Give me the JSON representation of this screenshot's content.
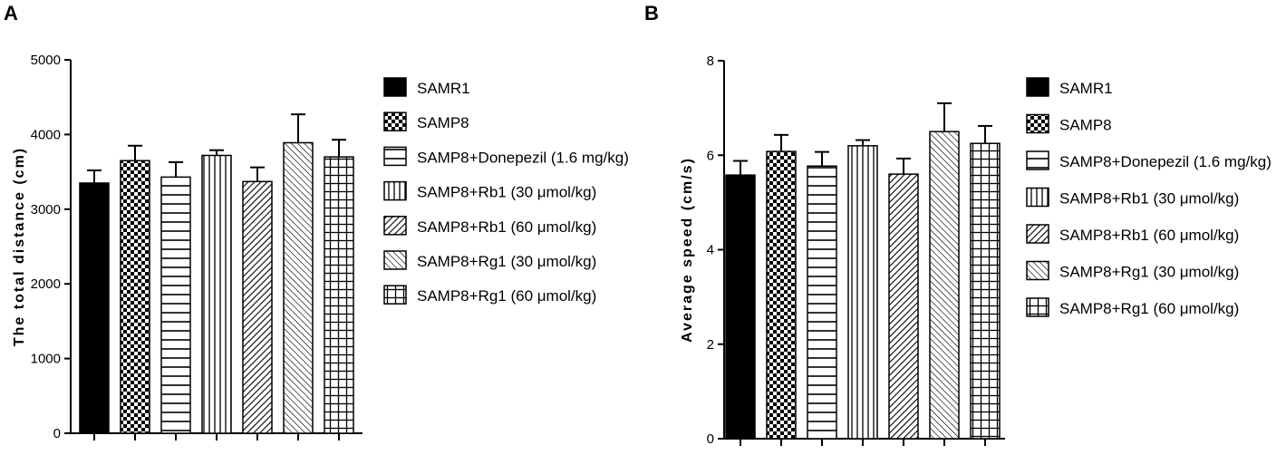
{
  "chart_data": [
    {
      "panel": "A",
      "type": "bar",
      "ylabel": "The total distance (cm)",
      "ylim": [
        0,
        5000
      ],
      "yticks": [
        0,
        1000,
        2000,
        3000,
        4000,
        5000
      ],
      "series": [
        {
          "name": "SAMR1",
          "value": 3350,
          "error": 170,
          "pattern": "solid"
        },
        {
          "name": "SAMP8",
          "value": 3650,
          "error": 200,
          "pattern": "checker"
        },
        {
          "name": "SAMP8+Donepezil (1.6 mg/kg)",
          "value": 3430,
          "error": 200,
          "pattern": "hlines"
        },
        {
          "name": "SAMP8+Rb1 (30 μmol/kg)",
          "value": 3720,
          "error": 70,
          "pattern": "vlines"
        },
        {
          "name": "SAMP8+Rb1 (60 μmol/kg)",
          "value": 3370,
          "error": 190,
          "pattern": "diag-dense"
        },
        {
          "name": "SAMP8+Rg1 (30 μmol/kg)",
          "value": 3890,
          "error": 380,
          "pattern": "diag-back"
        },
        {
          "name": "SAMP8+Rg1 (60 μmol/kg)",
          "value": 3700,
          "error": 230,
          "pattern": "grid"
        }
      ]
    },
    {
      "panel": "B",
      "type": "bar",
      "ylabel": "Average speed (cm/s)",
      "ylim": [
        0,
        8
      ],
      "yticks": [
        0,
        2,
        4,
        6,
        8
      ],
      "series": [
        {
          "name": "SAMR1",
          "value": 5.58,
          "error": 0.3,
          "pattern": "solid"
        },
        {
          "name": "SAMP8",
          "value": 6.08,
          "error": 0.35,
          "pattern": "checker"
        },
        {
          "name": "SAMP8+Donepezil (1.6 mg/kg)",
          "value": 5.77,
          "error": 0.3,
          "pattern": "hlines"
        },
        {
          "name": "SAMP8+Rb1 (30 μmol/kg)",
          "value": 6.2,
          "error": 0.12,
          "pattern": "vlines"
        },
        {
          "name": "SAMP8+Rb1 (60 μmol/kg)",
          "value": 5.6,
          "error": 0.33,
          "pattern": "diag-dense"
        },
        {
          "name": "SAMP8+Rg1 (30 μmol/kg)",
          "value": 6.5,
          "error": 0.6,
          "pattern": "diag-back"
        },
        {
          "name": "SAMP8+Rg1 (60 μmol/kg)",
          "value": 6.25,
          "error": 0.37,
          "pattern": "grid"
        }
      ]
    }
  ],
  "panels": {
    "a_letter": "A",
    "b_letter": "B"
  },
  "colors": {
    "ink": "#000000",
    "paper": "#ffffff"
  }
}
